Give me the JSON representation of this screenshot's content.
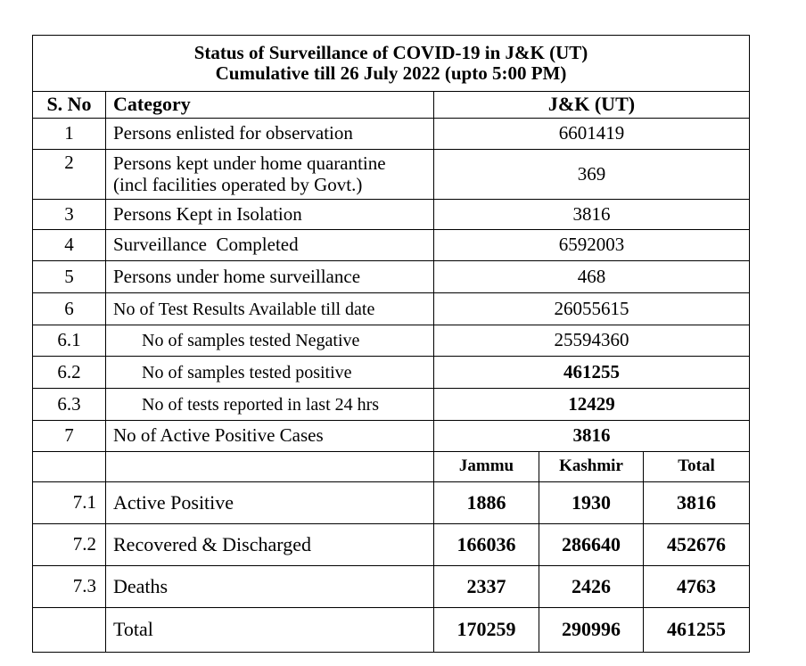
{
  "title": {
    "line1": "Status of Surveillance of COVID-19 in J&K (UT)",
    "line2": "Cumulative till 26 July 2022 (upto 5:00 PM)"
  },
  "header": {
    "sno": "S. No",
    "category": "Category",
    "region": "J&K (UT)"
  },
  "rows": [
    {
      "sno": "1",
      "category": "Persons enlisted for observation",
      "value": "6601419"
    },
    {
      "sno": "2",
      "category_line1": "Persons kept under home quarantine",
      "category_line2": "(incl facilities operated by Govt.)",
      "value": "369"
    },
    {
      "sno": "3",
      "category": "Persons Kept in Isolation",
      "value": "3816"
    },
    {
      "sno": "4",
      "category": "Surveillance  Completed",
      "value": "6592003"
    },
    {
      "sno": "5",
      "category": "Persons under home surveillance",
      "value": "468"
    },
    {
      "sno": "6",
      "category": "No of Test Results Available till date",
      "value": "26055615"
    },
    {
      "sno": "6.1",
      "category": "No of samples tested Negative",
      "value": "25594360"
    },
    {
      "sno": "6.2",
      "category": "No of samples tested positive",
      "value": "461255"
    },
    {
      "sno": "6.3",
      "category": "No of tests reported in last 24 hrs",
      "value": "12429"
    },
    {
      "sno": "7",
      "category": "No of Active Positive Cases",
      "value": "3816"
    }
  ],
  "breakdown": {
    "columns": [
      "Jammu",
      "Kashmir",
      "Total"
    ],
    "rows": [
      {
        "sno": "7.1",
        "category": "Active Positive",
        "jammu": "1886",
        "kashmir": "1930",
        "total": "3816"
      },
      {
        "sno": "7.2",
        "category": "Recovered & Discharged",
        "jammu": "166036",
        "kashmir": "286640",
        "total": "452676"
      },
      {
        "sno": "7.3",
        "category": "Deaths",
        "jammu": "2337",
        "kashmir": "2426",
        "total": "4763"
      },
      {
        "sno": "",
        "category": "Total",
        "jammu": "170259",
        "kashmir": "290996",
        "total": "461255"
      }
    ]
  }
}
